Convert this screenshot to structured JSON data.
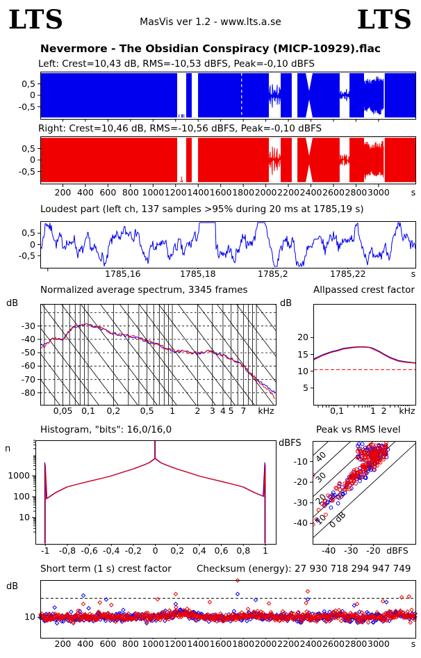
{
  "header": {
    "logo_left": "LTS",
    "logo_right": "LTS",
    "app_line": "MasVis ver 1.2 - www.lts.a.se",
    "title": "Nevermore - The Obsidian Conspiracy (MICP-10929).flac"
  },
  "colors": {
    "left_channel": "#0000EE",
    "right_channel": "#F00000",
    "axis": "#000000",
    "background": "#FFFFFF",
    "dashed_reference": "#FF0000"
  },
  "time_axis": {
    "duration_s": 3327,
    "tick_values": [
      200,
      400,
      600,
      800,
      1000,
      1200,
      1400,
      1600,
      1800,
      2000,
      2200,
      2400,
      2600,
      2800,
      3000
    ],
    "tick_labels": [
      "200",
      "400",
      "600",
      "800",
      "1000",
      "1200",
      "1400",
      "1600",
      "1800",
      "2000",
      "2200",
      "2400",
      "2600",
      "2800",
      "3000"
    ],
    "unit": "s"
  },
  "chart_data": [
    {
      "type": "area",
      "id": "waveform-left",
      "label": "Left: Crest=10,43 dB, RMS=-10,53 dBFS, Peak=-0,10 dBFS",
      "crest_db": "10,43",
      "rms_dbfs": "-10,53",
      "peak_dbfs": "-0,10",
      "ylim": [
        -1,
        1
      ],
      "ytick_values": [
        0.5,
        0,
        -0.5
      ],
      "ytick_labels": [
        "0,5",
        "0",
        "-0,5"
      ],
      "envelope": 0.965,
      "cursor_time_s": 1785.19,
      "seed": 11,
      "quiet_regions": [
        {
          "start": 1214,
          "end": 1294,
          "kind": "silence",
          "remnant": true
        },
        {
          "start": 1343,
          "end": 1399,
          "kind": "silence"
        },
        {
          "start": 2027,
          "end": 2132,
          "kind": "quiet_wave",
          "amp": 0.45
        },
        {
          "start": 2230,
          "end": 2280,
          "kind": "silence"
        },
        {
          "start": 2354,
          "end": 2415,
          "kind": "pinch",
          "amp": 0.18
        },
        {
          "start": 2655,
          "end": 2742,
          "kind": "quiet_wave",
          "amp": 0.22
        },
        {
          "start": 2871,
          "end": 3046,
          "kind": "spiky",
          "amp_min": 0.35,
          "amp_max": 1.0
        },
        {
          "start": 3046,
          "end": 3055,
          "kind": "silence"
        }
      ]
    },
    {
      "type": "area",
      "id": "waveform-right",
      "label": "Right: Crest=10,46 dB, RMS=-10,56 dBFS, Peak=-0,10 dBFS",
      "crest_db": "10,46",
      "rms_dbfs": "-10,56",
      "peak_dbfs": "-0,10",
      "ylim": [
        -1,
        1
      ],
      "ytick_values": [
        0.5,
        0,
        -0.5
      ],
      "ytick_labels": [
        "0,5",
        "0",
        "-0,5"
      ],
      "envelope": 0.965,
      "seed": 23,
      "quiet_regions": [
        {
          "start": 1214,
          "end": 1294,
          "kind": "silence",
          "remnant": true
        },
        {
          "start": 1343,
          "end": 1399,
          "kind": "silence"
        },
        {
          "start": 2027,
          "end": 2132,
          "kind": "quiet_wave",
          "amp": 0.45
        },
        {
          "start": 2230,
          "end": 2280,
          "kind": "silence"
        },
        {
          "start": 2354,
          "end": 2415,
          "kind": "pinch",
          "amp": 0.18
        },
        {
          "start": 2655,
          "end": 2742,
          "kind": "quiet_wave",
          "amp": 0.22
        },
        {
          "start": 2871,
          "end": 3046,
          "kind": "spiky",
          "amp_min": 0.35,
          "amp_max": 1.0
        },
        {
          "start": 3046,
          "end": 3055,
          "kind": "silence"
        }
      ]
    },
    {
      "type": "line",
      "id": "loudest-part",
      "title": "Loudest part (left ch, 137 samples >95% during 20 ms at 1785,19 s)",
      "xlim": [
        1785.138,
        1785.238
      ],
      "xtick_values": [
        1785.14,
        1785.16,
        1785.18,
        1785.2,
        1785.22
      ],
      "xtick_labels": [
        "",
        "1785,16",
        "1785,18",
        "1785,2",
        "1785,22"
      ],
      "xunit": "s",
      "ylim": [
        -1,
        1
      ],
      "ytick_values": [
        0.5,
        0,
        -0.5
      ],
      "ytick_labels": [
        "0,5",
        "0",
        "-0,5"
      ],
      "clip_level": 0.97,
      "clip_plateau_frac": [
        0.425,
        0.468
      ],
      "seed": 7
    },
    {
      "type": "line",
      "id": "average-spectrum",
      "title": "Normalized average spectrum, 3345 frames",
      "ylabel": "dB",
      "xunit": "kHz",
      "x_log": true,
      "xlim_khz": [
        0.0269,
        17
      ],
      "ylim_db": [
        -89,
        -13.5
      ],
      "xtick_values": [
        0.05,
        0.1,
        0.2,
        0.5,
        1,
        2,
        3,
        4,
        5,
        7
      ],
      "xtick_labels": [
        "0,05",
        "0,1",
        "0,2",
        "0,5",
        "1",
        "2",
        "3",
        "4",
        "5",
        "7"
      ],
      "ytick_values": [
        -30,
        -40,
        -50,
        -60,
        -70,
        -80
      ],
      "grid_freqs": [
        0.03,
        0.04,
        0.05,
        0.06,
        0.07,
        0.08,
        0.09,
        0.1,
        0.2,
        0.3,
        0.4,
        0.5,
        0.6,
        0.7,
        0.8,
        0.9,
        1,
        2,
        3,
        4,
        5,
        6,
        7,
        8,
        9,
        10
      ],
      "dashed_levels": [
        -20,
        -30,
        -40,
        -50,
        -60,
        -70,
        -80
      ],
      "diagonal_spacing_px": 28,
      "jitter_db": 1.2,
      "seed": 31,
      "series": [
        {
          "name": "left",
          "points": [
            [
              0.0269,
              -44.5
            ],
            [
              0.03,
              -44
            ],
            [
              0.035,
              -41
            ],
            [
              0.04,
              -38.8
            ],
            [
              0.045,
              -40
            ],
            [
              0.05,
              -40
            ],
            [
              0.055,
              -36.5
            ],
            [
              0.06,
              -33.5
            ],
            [
              0.07,
              -30.2
            ],
            [
              0.08,
              -30.6
            ],
            [
              0.09,
              -28.8
            ],
            [
              0.1,
              -29.6
            ],
            [
              0.12,
              -30
            ],
            [
              0.15,
              -32.5
            ],
            [
              0.2,
              -35.8
            ],
            [
              0.3,
              -37.5
            ],
            [
              0.4,
              -39
            ],
            [
              0.5,
              -41.8
            ],
            [
              0.7,
              -44
            ],
            [
              0.8,
              -46
            ],
            [
              1,
              -48.3
            ],
            [
              1.5,
              -49.5
            ],
            [
              2,
              -50.4
            ],
            [
              2.5,
              -49
            ],
            [
              3,
              -49.6
            ],
            [
              4,
              -52
            ],
            [
              5,
              -54.5
            ],
            [
              6,
              -57
            ],
            [
              7,
              -60
            ],
            [
              8,
              -63.8
            ],
            [
              10,
              -69.5
            ],
            [
              12,
              -73.5
            ],
            [
              14,
              -77
            ],
            [
              16,
              -79
            ],
            [
              17,
              -80
            ]
          ]
        },
        {
          "name": "right",
          "points": [
            [
              0.0269,
              -47.5
            ],
            [
              0.03,
              -45
            ],
            [
              0.035,
              -41.5
            ],
            [
              0.04,
              -39
            ],
            [
              0.045,
              -40.3
            ],
            [
              0.05,
              -40
            ],
            [
              0.055,
              -36.5
            ],
            [
              0.06,
              -33.5
            ],
            [
              0.07,
              -30.2
            ],
            [
              0.08,
              -30.6
            ],
            [
              0.09,
              -28.8
            ],
            [
              0.1,
              -29.6
            ],
            [
              0.12,
              -30
            ],
            [
              0.15,
              -32.5
            ],
            [
              0.2,
              -35.8
            ],
            [
              0.3,
              -37.5
            ],
            [
              0.4,
              -39
            ],
            [
              0.5,
              -41.8
            ],
            [
              0.7,
              -44
            ],
            [
              0.8,
              -46
            ],
            [
              1,
              -48.3
            ],
            [
              1.5,
              -49.5
            ],
            [
              2,
              -50.4
            ],
            [
              2.5,
              -49
            ],
            [
              3,
              -49.6
            ],
            [
              4,
              -52
            ],
            [
              5,
              -54.5
            ],
            [
              6,
              -57
            ],
            [
              7,
              -60
            ],
            [
              8,
              -63.8
            ],
            [
              10,
              -70
            ],
            [
              12,
              -74.5
            ],
            [
              14,
              -78.5
            ],
            [
              16,
              -82.5
            ],
            [
              17,
              -84
            ]
          ]
        }
      ]
    },
    {
      "type": "line",
      "id": "allpassed-crest-factor",
      "title": "Allpassed crest factor",
      "ylabel": "dB",
      "xunit": "kHz",
      "x_log": true,
      "xlim_khz": [
        0.022,
        15
      ],
      "ylim": [
        0,
        30
      ],
      "xtick_values": [
        0.1,
        1,
        2
      ],
      "xtick_labels": [
        "0,1",
        "1",
        "2"
      ],
      "ytick_values": [
        5,
        10,
        15,
        20
      ],
      "dashed_reference_db": 10.45,
      "series": [
        {
          "name": "left",
          "points": [
            [
              0.022,
              13.6
            ],
            [
              0.04,
              14.9
            ],
            [
              0.07,
              15.8
            ],
            [
              0.1,
              16.2
            ],
            [
              0.15,
              16.8
            ],
            [
              0.25,
              17.1
            ],
            [
              0.4,
              17.25
            ],
            [
              0.6,
              17.25
            ],
            [
              0.8,
              17.1
            ],
            [
              1,
              16.8
            ],
            [
              1.5,
              15.9
            ],
            [
              2,
              15.1
            ],
            [
              3,
              14.1
            ],
            [
              5,
              13.2
            ],
            [
              8,
              12.8
            ],
            [
              12,
              12.6
            ],
            [
              15,
              12.5
            ]
          ]
        },
        {
          "name": "right",
          "points": [
            [
              0.022,
              13.3
            ],
            [
              0.04,
              14.7
            ],
            [
              0.07,
              15.6
            ],
            [
              0.1,
              16.0
            ],
            [
              0.15,
              16.6
            ],
            [
              0.25,
              16.95
            ],
            [
              0.4,
              17.15
            ],
            [
              0.6,
              17.15
            ],
            [
              0.8,
              17.0
            ],
            [
              1,
              16.6
            ],
            [
              1.5,
              15.7
            ],
            [
              2,
              14.9
            ],
            [
              3,
              13.9
            ],
            [
              5,
              13.0
            ],
            [
              8,
              12.65
            ],
            [
              12,
              12.5
            ],
            [
              15,
              12.4
            ]
          ]
        }
      ]
    },
    {
      "type": "line",
      "id": "histogram",
      "title": "Histogram, \"bits\": 16,0/16,0",
      "ylabel": "n",
      "y_log": true,
      "xlim": [
        -1.09,
        1.095
      ],
      "xtick_values": [
        -1,
        -0.8,
        -0.6,
        -0.4,
        -0.2,
        0,
        0.2,
        0.4,
        0.6,
        0.8,
        1
      ],
      "xtick_labels": [
        "-1",
        "-0,8",
        "-0,6",
        "-0,4",
        "-0,2",
        "0",
        "0,2",
        "0,4",
        "0,6",
        "0,8",
        "1"
      ],
      "ytick_values": [
        1000,
        100,
        10
      ],
      "ytick_labels": [
        "1000",
        "100",
        "10"
      ],
      "curve": [
        [
          -0.985,
          80
        ],
        [
          -0.9,
          160
        ],
        [
          -0.8,
          290
        ],
        [
          -0.7,
          400
        ],
        [
          -0.6,
          540
        ],
        [
          -0.5,
          720
        ],
        [
          -0.4,
          980
        ],
        [
          -0.3,
          1450
        ],
        [
          -0.2,
          2100
        ],
        [
          -0.1,
          3300
        ],
        [
          -0.05,
          4300
        ],
        [
          0,
          6800
        ],
        [
          0.05,
          4300
        ],
        [
          0.1,
          3300
        ],
        [
          0.2,
          2100
        ],
        [
          0.3,
          1450
        ],
        [
          0.4,
          980
        ],
        [
          0.5,
          720
        ],
        [
          0.6,
          540
        ],
        [
          0.7,
          400
        ],
        [
          0.8,
          290
        ],
        [
          0.9,
          160
        ],
        [
          0.985,
          105
        ]
      ],
      "spike_minus1": {
        "left": 4400,
        "right": 3400
      },
      "spike_plus1": {
        "left": 4400,
        "right": 3400
      },
      "spike_zero": 50000
    },
    {
      "type": "scatter",
      "id": "peak-vs-rms",
      "title": "Peak vs RMS level",
      "ylabel": "dBFS",
      "xunit": "dBFS",
      "xlim": [
        -47.2,
        -1.2
      ],
      "ylim": [
        -50,
        0
      ],
      "xtick_values": [
        -40,
        -30,
        -20
      ],
      "ytick_values": [
        -10,
        -20,
        -30,
        -40
      ],
      "diagonal_crest_lines": [
        0,
        10,
        20,
        30,
        40
      ],
      "diagonal_labels": [
        "0 dB",
        "10",
        "20",
        "30",
        "40"
      ],
      "generated": {
        "seed": 101,
        "count_right": 140,
        "count_left": 90,
        "rms_min": -45,
        "rms_max": -14,
        "crest_mean": 10.8,
        "crest_spread": 2.3,
        "cluster_count": 45
      },
      "extra_points_right": [
        [
          -47,
          -16.5
        ],
        [
          -47,
          -40.5
        ],
        [
          -45.5,
          -38
        ],
        [
          -44.5,
          -33.5
        ],
        [
          -43,
          -30.5
        ],
        [
          -41.5,
          -29
        ]
      ],
      "extra_points_left": [
        [
          -45,
          -38.5
        ],
        [
          -42,
          -31
        ],
        [
          -40.5,
          -29.5
        ],
        [
          -38,
          -27
        ]
      ]
    },
    {
      "type": "scatter",
      "id": "short-term-crest",
      "title": "Short term (1 s) crest factor",
      "checksum_label": "Checksum (energy):  27 930 718 294 947 749",
      "ylabel": "dB",
      "xunit": "s",
      "ylim": [
        -1,
        29.7
      ],
      "ytick_values": [
        10
      ],
      "dashed_reference_db": 20,
      "generated": {
        "seed": 77,
        "points_per_channel": 640,
        "base_mean": 9.9,
        "base_jitter": 1.1,
        "bumps": [
          {
            "t": 1250,
            "w": 140,
            "a": 3.2
          },
          {
            "t": 560,
            "w": 45,
            "a": 1.2
          },
          {
            "t": 1925,
            "w": 110,
            "a": 1.8
          },
          {
            "t": 2620,
            "w": 90,
            "a": 1.6
          },
          {
            "t": 3180,
            "w": 110,
            "a": 2.2
          }
        ]
      },
      "outliers": [
        {
          "t": 382,
          "v": 21.5,
          "ch": "left"
        },
        {
          "t": 382,
          "v": 17,
          "ch": "right"
        },
        {
          "t": 630,
          "v": 16.5,
          "ch": "right"
        },
        {
          "t": 1040,
          "v": 19.5,
          "ch": "right"
        },
        {
          "t": 1201,
          "v": 22.3,
          "ch": "right"
        },
        {
          "t": 1201,
          "v": 17,
          "ch": "left"
        },
        {
          "t": 1503,
          "v": 18,
          "ch": "right"
        },
        {
          "t": 1750,
          "v": 29.5,
          "ch": "right"
        },
        {
          "t": 1750,
          "v": 22.3,
          "ch": "left"
        },
        {
          "t": 2027,
          "v": 17.3,
          "ch": "right"
        },
        {
          "t": 2372,
          "v": 23.7,
          "ch": "right"
        },
        {
          "t": 2372,
          "v": 19.4,
          "ch": "left"
        },
        {
          "t": 2810,
          "v": 17,
          "ch": "right"
        },
        {
          "t": 3038,
          "v": 18.5,
          "ch": "right"
        },
        {
          "t": 3270,
          "v": 21,
          "ch": "right"
        }
      ]
    }
  ]
}
